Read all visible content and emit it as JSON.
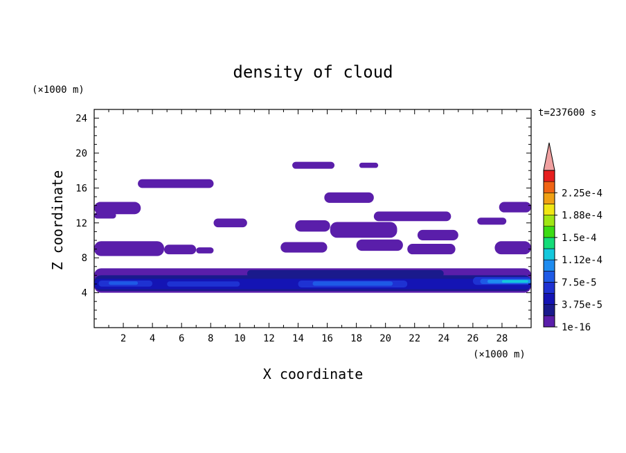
{
  "chart_data": {
    "type": "heatmap",
    "title": "density of cloud",
    "xlabel": "X coordinate",
    "ylabel": "Z coordinate",
    "x_unit": "(×1000 m)",
    "y_unit": "(×1000 m)",
    "time_label": "t=237600 s",
    "xlim": [
      0,
      30
    ],
    "ylim": [
      0,
      25
    ],
    "x_ticks": [
      "2",
      "4",
      "6",
      "8",
      "10",
      "12",
      "14",
      "16",
      "18",
      "20",
      "22",
      "24",
      "26",
      "28"
    ],
    "y_ticks": [
      "4",
      "8",
      "12",
      "16",
      "20",
      "24"
    ],
    "colorbar": {
      "labels": [
        "1e-16",
        "3.75e-5",
        "7.5e-5",
        "1.12e-4",
        "1.5e-4",
        "1.88e-4",
        "2.25e-4"
      ],
      "levels": [
        1e-16,
        1.875e-05,
        3.75e-05,
        5.625e-05,
        7.5e-05,
        9.375e-05,
        0.0001125,
        0.00013125,
        0.00015,
        0.00016875,
        0.0001875,
        0.00020625,
        0.000225,
        0.00024375
      ],
      "colors": [
        "#5a1eaa",
        "#1a1a8c",
        "#1414b4",
        "#1e32d2",
        "#1e5ae6",
        "#1e8cf0",
        "#14c8dc",
        "#14dc78",
        "#3cdc14",
        "#a0e614",
        "#f0e614",
        "#f0a014",
        "#f06414",
        "#e61e1e"
      ],
      "extend_color": "#f0a0a0",
      "border_color": "#000000"
    },
    "regions": [
      {
        "level": 0,
        "x": [
          0.0,
          30.0
        ],
        "z": [
          4.0,
          6.8
        ]
      },
      {
        "level": 1,
        "x": [
          0.0,
          30.0
        ],
        "z": [
          4.2,
          6.0
        ]
      },
      {
        "level": 1,
        "x": [
          10.5,
          24.0
        ],
        "z": [
          5.8,
          6.6
        ]
      },
      {
        "level": 2,
        "x": [
          0.0,
          30.0
        ],
        "z": [
          4.4,
          5.6
        ]
      },
      {
        "level": 3,
        "x": [
          0.3,
          4.0
        ],
        "z": [
          4.7,
          5.4
        ]
      },
      {
        "level": 3,
        "x": [
          5.0,
          10.0
        ],
        "z": [
          4.7,
          5.3
        ]
      },
      {
        "level": 3,
        "x": [
          14.0,
          21.5
        ],
        "z": [
          4.6,
          5.4
        ]
      },
      {
        "level": 3,
        "x": [
          26.0,
          30.0
        ],
        "z": [
          4.9,
          5.8
        ]
      },
      {
        "level": 4,
        "x": [
          1.0,
          3.0
        ],
        "z": [
          4.9,
          5.3
        ]
      },
      {
        "level": 4,
        "x": [
          15.0,
          20.5
        ],
        "z": [
          4.8,
          5.3
        ]
      },
      {
        "level": 4,
        "x": [
          26.5,
          30.0
        ],
        "z": [
          5.0,
          5.6
        ]
      },
      {
        "level": 5,
        "x": [
          27.0,
          30.0
        ],
        "z": [
          5.1,
          5.5
        ]
      },
      {
        "level": 6,
        "x": [
          28.0,
          29.8
        ],
        "z": [
          5.15,
          5.45
        ]
      },
      {
        "level": 0,
        "x": [
          0.0,
          4.8
        ],
        "z": [
          8.2,
          9.9
        ]
      },
      {
        "level": 0,
        "x": [
          4.8,
          7.0
        ],
        "z": [
          8.4,
          9.5
        ]
      },
      {
        "level": 0,
        "x": [
          7.0,
          8.2
        ],
        "z": [
          8.5,
          9.2
        ]
      },
      {
        "level": 0,
        "x": [
          12.8,
          16.0
        ],
        "z": [
          8.6,
          9.8
        ]
      },
      {
        "level": 0,
        "x": [
          18.0,
          21.2
        ],
        "z": [
          8.8,
          10.1
        ]
      },
      {
        "level": 0,
        "x": [
          21.5,
          24.8
        ],
        "z": [
          8.4,
          9.6
        ]
      },
      {
        "level": 0,
        "x": [
          27.5,
          30.0
        ],
        "z": [
          8.4,
          9.9
        ]
      },
      {
        "level": 0,
        "x": [
          0.0,
          3.2
        ],
        "z": [
          13.0,
          14.4
        ]
      },
      {
        "level": 0,
        "x": [
          0.0,
          1.5
        ],
        "z": [
          12.5,
          13.2
        ]
      },
      {
        "level": 0,
        "x": [
          8.2,
          10.5
        ],
        "z": [
          11.5,
          12.5
        ]
      },
      {
        "level": 0,
        "x": [
          13.8,
          16.2
        ],
        "z": [
          11.0,
          12.3
        ]
      },
      {
        "level": 0,
        "x": [
          16.2,
          20.8
        ],
        "z": [
          10.3,
          12.1
        ]
      },
      {
        "level": 0,
        "x": [
          19.2,
          24.5
        ],
        "z": [
          12.2,
          13.3
        ]
      },
      {
        "level": 0,
        "x": [
          22.2,
          25.0
        ],
        "z": [
          10.0,
          11.2
        ]
      },
      {
        "level": 0,
        "x": [
          26.3,
          28.3
        ],
        "z": [
          11.8,
          12.6
        ]
      },
      {
        "level": 0,
        "x": [
          27.8,
          30.0
        ],
        "z": [
          13.2,
          14.4
        ]
      },
      {
        "level": 0,
        "x": [
          15.8,
          19.2
        ],
        "z": [
          14.3,
          15.5
        ]
      },
      {
        "level": 0,
        "x": [
          3.0,
          8.2
        ],
        "z": [
          16.0,
          17.0
        ]
      },
      {
        "level": 0,
        "x": [
          13.6,
          16.5
        ],
        "z": [
          18.2,
          19.0
        ]
      },
      {
        "level": 0,
        "x": [
          18.2,
          19.5
        ],
        "z": [
          18.3,
          18.9
        ]
      }
    ]
  }
}
